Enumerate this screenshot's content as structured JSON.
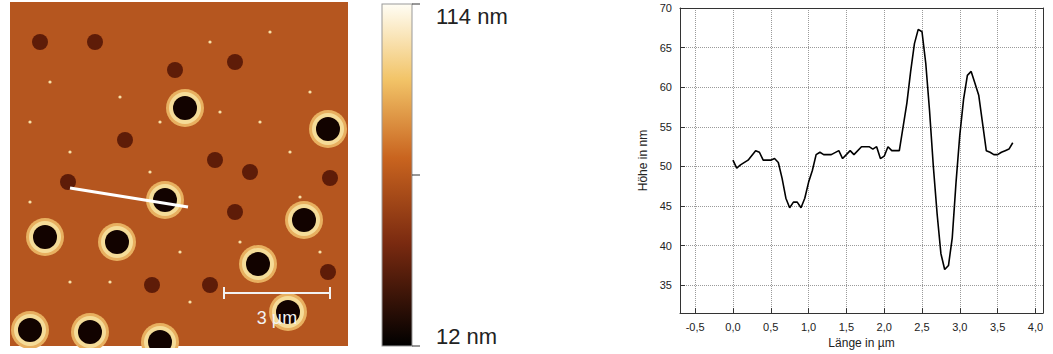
{
  "chart_data": {
    "type": "line",
    "x_label": "Länge in µm",
    "y_label": "Höhe in nm",
    "x": [
      0,
      0.05,
      0.1,
      0.2,
      0.3,
      0.35,
      0.4,
      0.5,
      0.55,
      0.6,
      0.65,
      0.7,
      0.75,
      0.8,
      0.85,
      0.9,
      0.95,
      1.0,
      1.05,
      1.1,
      1.15,
      1.2,
      1.3,
      1.4,
      1.45,
      1.5,
      1.55,
      1.6,
      1.7,
      1.8,
      1.85,
      1.9,
      1.95,
      2.0,
      2.05,
      2.1,
      2.2,
      2.25,
      2.3,
      2.35,
      2.4,
      2.45,
      2.5,
      2.55,
      2.6,
      2.65,
      2.7,
      2.75,
      2.8,
      2.85,
      2.9,
      2.95,
      3.0,
      3.05,
      3.1,
      3.15,
      3.2,
      3.25,
      3.3,
      3.35,
      3.4,
      3.45,
      3.5,
      3.55,
      3.6,
      3.65,
      3.7
    ],
    "values": [
      50.8,
      49.8,
      50.2,
      50.8,
      52,
      51.8,
      50.8,
      50.8,
      51,
      50.5,
      48.5,
      46,
      44.8,
      45.5,
      45.5,
      44.8,
      46,
      48,
      49.5,
      51.5,
      51.8,
      51.5,
      51.5,
      52,
      51,
      51.5,
      52,
      51.5,
      52.5,
      52.5,
      52.2,
      52.5,
      51,
      51.3,
      52.5,
      52,
      52,
      55,
      58,
      62,
      65.5,
      67.3,
      67,
      63,
      57,
      50,
      44,
      39,
      37,
      37.5,
      41,
      48,
      54,
      58.5,
      61.5,
      62,
      60.5,
      59,
      55.5,
      52,
      51.8,
      51.5,
      51.5,
      51.8,
      52,
      52.2,
      53
    ],
    "color": "#000000",
    "line_style": "solid",
    "grid": true,
    "xlim": [
      -0.7,
      4.1
    ],
    "xticks": [
      {
        "value": -0.5,
        "label": "-0,5"
      },
      {
        "value": 0,
        "label": "0,0"
      },
      {
        "value": 0.5,
        "label": "0,5"
      },
      {
        "value": 1,
        "label": "1,0"
      },
      {
        "value": 1.5,
        "label": "1,5"
      },
      {
        "value": 2,
        "label": "2,0"
      },
      {
        "value": 2.5,
        "label": "2,5"
      },
      {
        "value": 3,
        "label": "3,0"
      },
      {
        "value": 3.5,
        "label": "3,5"
      },
      {
        "value": 4,
        "label": "4,0"
      }
    ],
    "ylim": [
      31.5,
      70
    ],
    "yticks": [
      35,
      40,
      45,
      50,
      55,
      60,
      65,
      70
    ]
  },
  "image": {
    "scale_bar": "3 µm",
    "color_bar": {
      "range": [
        12,
        114
      ],
      "ticks": [
        {
          "value": 114,
          "label": "114 nm"
        },
        {
          "value": 12,
          "label": "12 nm"
        }
      ]
    }
  }
}
